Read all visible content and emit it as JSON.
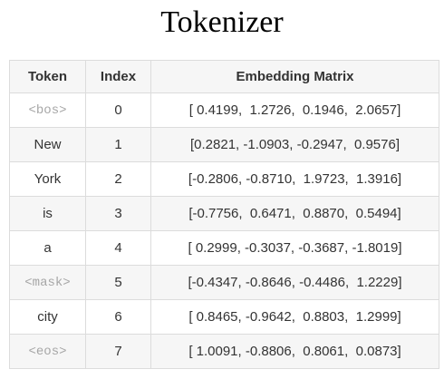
{
  "title": "Tokenizer",
  "table": {
    "headers": [
      "Token",
      "Index",
      "Embedding Matrix"
    ],
    "rows": [
      {
        "token": "<bos>",
        "special": true,
        "index": "0",
        "embedding": "[ 0.4199,  1.2726,  0.1946,  2.0657]"
      },
      {
        "token": "New",
        "special": false,
        "index": "1",
        "embedding": "[0.2821, -1.0903, -0.2947,  0.9576]"
      },
      {
        "token": "York",
        "special": false,
        "index": "2",
        "embedding": "[-0.2806, -0.8710,  1.9723,  1.3916]"
      },
      {
        "token": "is",
        "special": false,
        "index": "3",
        "embedding": "[-0.7756,  0.6471,  0.8870,  0.5494]"
      },
      {
        "token": "a",
        "special": false,
        "index": "4",
        "embedding": "[ 0.2999, -0.3037, -0.3687, -1.8019]"
      },
      {
        "token": "<mask>",
        "special": true,
        "index": "5",
        "embedding": "[-0.4347, -0.8646, -0.4486,  1.2229]"
      },
      {
        "token": "city",
        "special": false,
        "index": "6",
        "embedding": "[ 0.8465, -0.9642,  0.8803,  1.2999]"
      },
      {
        "token": "<eos>",
        "special": true,
        "index": "7",
        "embedding": "[ 1.0091, -0.8806,  0.8061,  0.0873]"
      }
    ]
  },
  "colors": {
    "special_token_text": "#a6a6a6",
    "header_background": "#f6f6f6",
    "border": "#dcdcdc"
  }
}
